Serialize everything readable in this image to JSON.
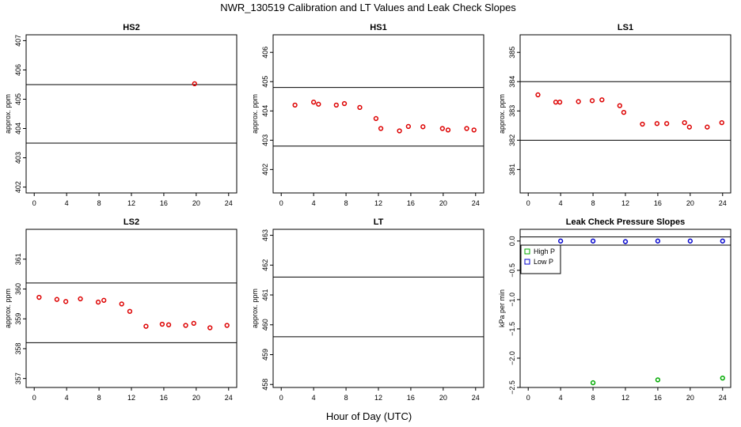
{
  "figure": {
    "title": "NWR_130519  Calibration and LT Values and Leak Check Slopes",
    "xlabel": "Hour of Day (UTC)"
  },
  "chart_data": [
    {
      "type": "scatter",
      "title": "HS2",
      "xlabel": "",
      "ylabel": "approx. ppm",
      "xlim": [
        -1,
        25
      ],
      "ylim": [
        401.8,
        407.2
      ],
      "xticks": [
        0,
        4,
        8,
        12,
        16,
        20,
        24
      ],
      "yticks": [
        402,
        403,
        404,
        405,
        406,
        407
      ],
      "hlines": [
        403.5,
        405.5
      ],
      "grid": false,
      "series": [
        {
          "color": "#dd0000",
          "points": [
            [
              19.8,
              405.53
            ]
          ]
        }
      ]
    },
    {
      "type": "scatter",
      "title": "HS1",
      "xlabel": "",
      "ylabel": "approx. ppm",
      "xlim": [
        -1,
        25
      ],
      "ylim": [
        401.2,
        406.6
      ],
      "xticks": [
        0,
        4,
        8,
        12,
        16,
        20,
        24
      ],
      "yticks": [
        402,
        403,
        404,
        405,
        406
      ],
      "hlines": [
        402.8,
        404.8
      ],
      "grid": false,
      "series": [
        {
          "color": "#dd0000",
          "points": [
            [
              1.7,
              404.2
            ],
            [
              4.0,
              404.3
            ],
            [
              4.6,
              404.23
            ],
            [
              6.8,
              404.2
            ],
            [
              7.8,
              404.25
            ],
            [
              9.7,
              404.12
            ],
            [
              11.7,
              403.74
            ],
            [
              12.3,
              403.4
            ],
            [
              14.6,
              403.32
            ],
            [
              15.7,
              403.47
            ],
            [
              17.5,
              403.46
            ],
            [
              19.9,
              403.4
            ],
            [
              20.6,
              403.35
            ],
            [
              22.9,
              403.4
            ],
            [
              23.8,
              403.35
            ]
          ]
        }
      ]
    },
    {
      "type": "scatter",
      "title": "LS1",
      "xlabel": "",
      "ylabel": "approx. ppm",
      "xlim": [
        -1,
        25
      ],
      "ylim": [
        380.2,
        385.6
      ],
      "xticks": [
        0,
        4,
        8,
        12,
        16,
        20,
        24
      ],
      "yticks": [
        381,
        382,
        383,
        384,
        385
      ],
      "hlines": [
        382.0,
        384.0
      ],
      "grid": false,
      "series": [
        {
          "color": "#dd0000",
          "points": [
            [
              1.2,
              383.55
            ],
            [
              3.4,
              383.3
            ],
            [
              3.9,
              383.3
            ],
            [
              6.2,
              383.32
            ],
            [
              7.9,
              383.35
            ],
            [
              9.1,
              383.38
            ],
            [
              11.3,
              383.18
            ],
            [
              11.8,
              382.95
            ],
            [
              14.1,
              382.55
            ],
            [
              15.9,
              382.57
            ],
            [
              17.1,
              382.57
            ],
            [
              19.3,
              382.6
            ],
            [
              19.9,
              382.45
            ],
            [
              22.1,
              382.45
            ],
            [
              23.9,
              382.6
            ]
          ]
        }
      ]
    },
    {
      "type": "scatter",
      "title": "LS2",
      "xlabel": "",
      "ylabel": "approx. ppm",
      "xlim": [
        -1,
        25
      ],
      "ylim": [
        356.7,
        362.0
      ],
      "xticks": [
        0,
        4,
        8,
        12,
        16,
        20,
        24
      ],
      "yticks": [
        357,
        358,
        359,
        360,
        361
      ],
      "hlines": [
        358.2,
        360.2
      ],
      "grid": false,
      "series": [
        {
          "color": "#dd0000",
          "points": [
            [
              0.6,
              359.72
            ],
            [
              2.8,
              359.65
            ],
            [
              3.9,
              359.58
            ],
            [
              5.7,
              359.67
            ],
            [
              7.9,
              359.56
            ],
            [
              8.6,
              359.62
            ],
            [
              10.8,
              359.5
            ],
            [
              11.8,
              359.25
            ],
            [
              13.8,
              358.75
            ],
            [
              15.8,
              358.82
            ],
            [
              16.6,
              358.8
            ],
            [
              18.7,
              358.78
            ],
            [
              19.7,
              358.85
            ],
            [
              21.7,
              358.7
            ],
            [
              23.8,
              358.78
            ]
          ]
        }
      ]
    },
    {
      "type": "scatter",
      "title": "LT",
      "xlabel": "",
      "ylabel": "approx. ppm",
      "xlim": [
        -1,
        25
      ],
      "ylim": [
        457.9,
        463.2
      ],
      "xticks": [
        0,
        4,
        8,
        12,
        16,
        20,
        24
      ],
      "yticks": [
        458,
        459,
        460,
        461,
        462,
        463
      ],
      "hlines": [
        459.6,
        461.6
      ],
      "grid": false,
      "series": []
    },
    {
      "type": "scatter",
      "title": "Leak Check Pressure Slopes",
      "xlabel": "",
      "ylabel": "kPa per min",
      "xlim": [
        -1,
        25
      ],
      "ylim": [
        -2.5,
        0.2
      ],
      "xticks": [
        0,
        4,
        8,
        12,
        16,
        20,
        24
      ],
      "yticks": [
        0.0,
        -0.5,
        -1.0,
        -1.5,
        -2.0,
        -2.5
      ],
      "ytick_labels": [
        "0.0",
        "−0.5",
        "−1.0",
        "−1.5",
        "−2.0",
        "−2.5"
      ],
      "hlines": [
        0.07,
        -0.07
      ],
      "grid": false,
      "legend": {
        "position": "top-left",
        "entries": [
          {
            "label": "High P",
            "color": "#00aa00"
          },
          {
            "label": "Low P",
            "color": "#0000cc"
          }
        ]
      },
      "series": [
        {
          "name": "High P",
          "color": "#00aa00",
          "points": [
            [
              8,
              -2.42
            ],
            [
              16,
              -2.37
            ],
            [
              24,
              -2.34
            ]
          ]
        },
        {
          "name": "Low P",
          "color": "#0000cc",
          "points": [
            [
              4,
              0.0
            ],
            [
              8,
              0.0
            ],
            [
              12,
              -0.01
            ],
            [
              16,
              0.0
            ],
            [
              20,
              0.0
            ],
            [
              24,
              0.0
            ]
          ]
        }
      ]
    }
  ]
}
